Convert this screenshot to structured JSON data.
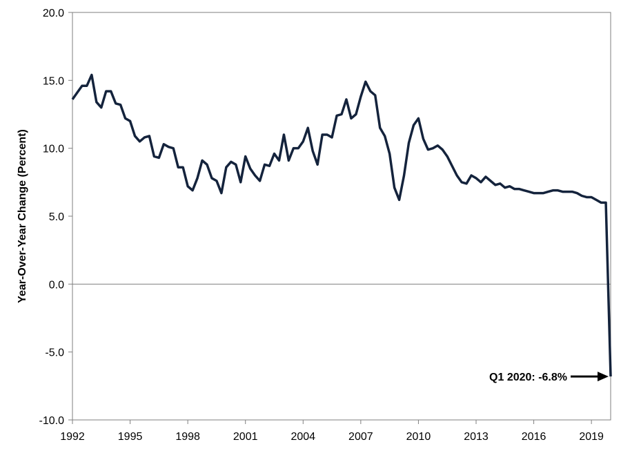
{
  "chart_data": {
    "type": "line",
    "ylabel": "Year-Over-Year Change (Percent)",
    "xlabel": "",
    "title": "",
    "ylim": [
      -10,
      20
    ],
    "xlim": [
      1992,
      2020
    ],
    "yticks": [
      "20.0",
      "15.0",
      "10.0",
      "5.0",
      "0.0",
      "-5.0",
      "-10.0"
    ],
    "xticks": [
      "1992",
      "1995",
      "1998",
      "2001",
      "2004",
      "2007",
      "2010",
      "2013",
      "2016",
      "2019"
    ],
    "grid": false,
    "line_color": "#14233c",
    "annotation": {
      "text": "Q1 2020: -6.8%",
      "x": 2020.0,
      "y": -6.8
    },
    "series": [
      {
        "x": [
          1992.0,
          1992.25,
          1992.5,
          1992.75,
          1993.0,
          1993.25,
          1993.5,
          1993.75,
          1994.0,
          1994.25,
          1994.5,
          1994.75,
          1995.0,
          1995.25,
          1995.5,
          1995.75,
          1996.0,
          1996.25,
          1996.5,
          1996.75,
          1997.0,
          1997.25,
          1997.5,
          1997.75,
          1998.0,
          1998.25,
          1998.5,
          1998.75,
          1999.0,
          1999.25,
          1999.5,
          1999.75,
          2000.0,
          2000.25,
          2000.5,
          2000.75,
          2001.0,
          2001.25,
          2001.5,
          2001.75,
          2002.0,
          2002.25,
          2002.5,
          2002.75,
          2003.0,
          2003.25,
          2003.5,
          2003.75,
          2004.0,
          2004.25,
          2004.5,
          2004.75,
          2005.0,
          2005.25,
          2005.5,
          2005.75,
          2006.0,
          2006.25,
          2006.5,
          2006.75,
          2007.0,
          2007.25,
          2007.5,
          2007.75,
          2008.0,
          2008.25,
          2008.5,
          2008.75,
          2009.0,
          2009.25,
          2009.5,
          2009.75,
          2010.0,
          2010.25,
          2010.5,
          2010.75,
          2011.0,
          2011.25,
          2011.5,
          2011.75,
          2012.0,
          2012.25,
          2012.5,
          2012.75,
          2013.0,
          2013.25,
          2013.5,
          2013.75,
          2014.0,
          2014.25,
          2014.5,
          2014.75,
          2015.0,
          2015.25,
          2015.5,
          2015.75,
          2016.0,
          2016.25,
          2016.5,
          2016.75,
          2017.0,
          2017.25,
          2017.5,
          2017.75,
          2018.0,
          2018.25,
          2018.5,
          2018.75,
          2019.0,
          2019.25,
          2019.5,
          2019.75,
          2020.0
        ],
        "values": [
          13.6,
          14.1,
          14.6,
          14.6,
          15.4,
          13.4,
          13.0,
          14.2,
          14.2,
          13.3,
          13.2,
          12.2,
          12.0,
          10.9,
          10.5,
          10.8,
          10.9,
          9.4,
          9.3,
          10.3,
          10.1,
          10.0,
          8.6,
          8.6,
          7.2,
          6.9,
          7.8,
          9.1,
          8.8,
          7.8,
          7.6,
          6.7,
          8.6,
          9.0,
          8.8,
          7.5,
          9.4,
          8.5,
          8.0,
          7.6,
          8.8,
          8.7,
          9.6,
          9.1,
          11.0,
          9.1,
          10.0,
          10.0,
          10.5,
          11.5,
          9.8,
          8.8,
          11.0,
          11.0,
          10.8,
          12.4,
          12.5,
          13.6,
          12.2,
          12.5,
          13.8,
          14.9,
          14.2,
          13.9,
          11.5,
          10.9,
          9.6,
          7.1,
          6.2,
          8.0,
          10.4,
          11.7,
          12.2,
          10.7,
          9.9,
          10.0,
          10.2,
          9.9,
          9.4,
          8.7,
          8.0,
          7.5,
          7.4,
          8.0,
          7.8,
          7.5,
          7.9,
          7.6,
          7.3,
          7.4,
          7.1,
          7.2,
          7.0,
          7.0,
          6.9,
          6.8,
          6.7,
          6.7,
          6.7,
          6.8,
          6.9,
          6.9,
          6.8,
          6.8,
          6.8,
          6.7,
          6.5,
          6.4,
          6.4,
          6.2,
          6.0,
          6.0,
          -6.8
        ]
      }
    ]
  }
}
